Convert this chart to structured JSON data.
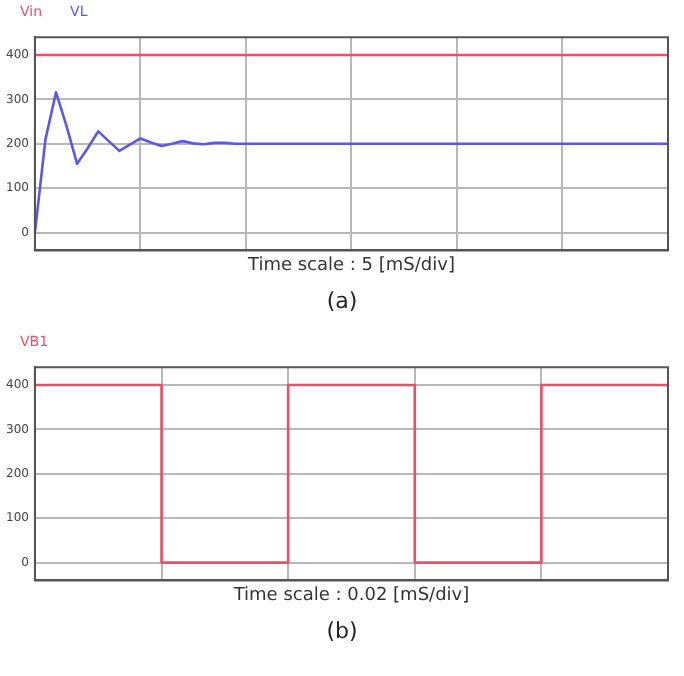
{
  "chart_data": [
    {
      "type": "line",
      "xlabel": "Time scale : 5 [mS/div]",
      "annotations": [
        "(a)"
      ],
      "categories": [
        null,
        null,
        null,
        null,
        null,
        null,
        null,
        null,
        null,
        null,
        null,
        null,
        null,
        null,
        null,
        null,
        null,
        null,
        null,
        null,
        null,
        null,
        null,
        null,
        null,
        null,
        null,
        null,
        null,
        null,
        null,
        null,
        null,
        null,
        null,
        null,
        null,
        null,
        null,
        null,
        null,
        null,
        null,
        null,
        null,
        null,
        null,
        null,
        null,
        null,
        null,
        null,
        null,
        null,
        null,
        null,
        null,
        null,
        null,
        null,
        null
      ],
      "ylim": [
        -40,
        440
      ],
      "yticks": [
        0,
        100,
        200,
        300,
        400
      ],
      "tick_labels": "y",
      "grid": true,
      "series": [
        {
          "name": "Vin",
          "color": "#e8506a",
          "values": [
            400,
            400,
            400,
            400,
            400,
            400,
            400,
            400,
            400,
            400,
            400,
            400,
            400,
            400,
            400,
            400,
            400,
            400,
            400,
            400,
            400,
            400,
            400,
            400,
            400,
            400,
            400,
            400,
            400,
            400,
            400,
            400,
            400,
            400,
            400,
            400,
            400,
            400,
            400,
            400,
            400,
            400,
            400,
            400,
            400,
            400,
            400,
            400,
            400,
            400,
            400,
            400,
            400,
            400,
            400,
            400,
            400,
            400,
            400,
            400,
            400
          ]
        },
        {
          "name": "VL",
          "color": "#5a5ae0",
          "values": [
            0,
            210,
            316,
            240,
            155,
            190,
            228,
            206,
            184,
            198,
            212,
            203,
            195,
            200,
            206,
            201,
            199,
            202,
            202,
            200,
            200,
            200,
            200,
            200,
            200,
            200,
            200,
            200,
            200,
            200,
            200,
            200,
            200,
            200,
            200,
            200,
            200,
            200,
            200,
            200,
            200,
            200,
            200,
            200,
            200,
            200,
            200,
            200,
            200,
            200,
            200,
            200,
            200,
            200,
            200,
            200,
            200,
            200,
            200,
            200,
            200
          ]
        }
      ]
    },
    {
      "type": "step",
      "xlabel": "Time scale : 0.02 [mS/div]",
      "annotations": [
        "(b)"
      ],
      "categories": [
        null,
        null,
        null,
        null,
        null,
        null
      ],
      "ylim": [
        -40,
        440
      ],
      "yticks": [
        0,
        100,
        200,
        300,
        400
      ],
      "tick_labels": "y",
      "grid": true,
      "series": [
        {
          "name": "VB1",
          "color": "#e8506a",
          "values": [
            400,
            0,
            400,
            0,
            400,
            400
          ]
        }
      ]
    }
  ]
}
